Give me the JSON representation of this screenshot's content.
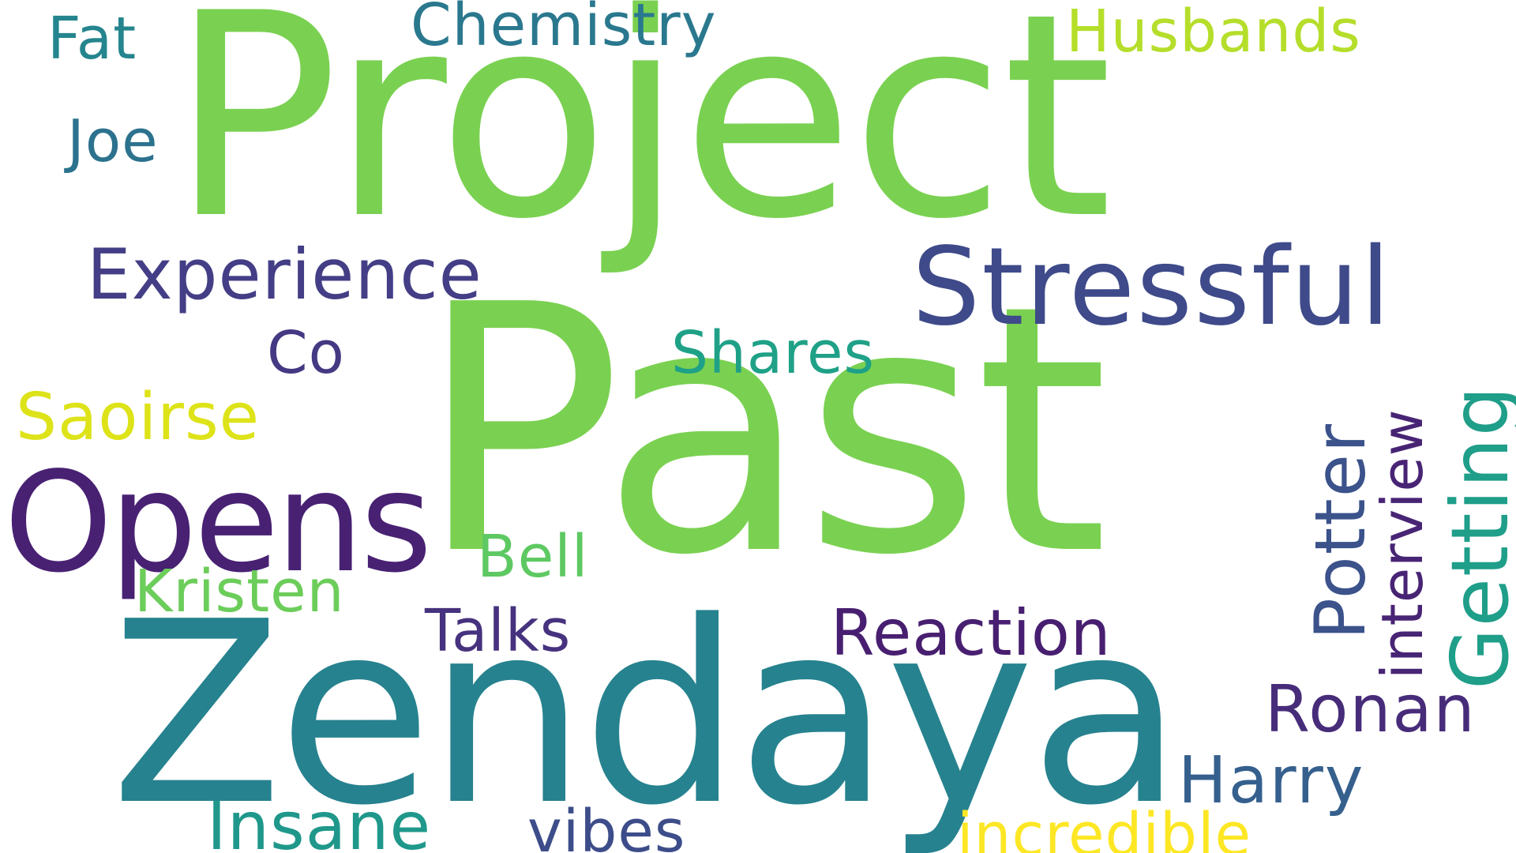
{
  "words": [
    {
      "text": "Past",
      "color": "#7ad151"
    },
    {
      "text": "Project",
      "color": "#7ad151"
    },
    {
      "text": "Zendaya",
      "color": "#26828e"
    },
    {
      "text": "Opens",
      "color": "#482173"
    },
    {
      "text": "Stressful",
      "color": "#3e4a89"
    },
    {
      "text": "Experience",
      "color": "#433e85"
    },
    {
      "text": "Getting",
      "color": "#1f9e89"
    },
    {
      "text": "Potter",
      "color": "#3b528b"
    },
    {
      "text": "interview",
      "color": "#482475"
    },
    {
      "text": "Reaction",
      "color": "#481f70"
    },
    {
      "text": "Ronan",
      "color": "#472c7a"
    },
    {
      "text": "Harry",
      "color": "#355f8d"
    },
    {
      "text": "Saoirse",
      "color": "#dde318"
    },
    {
      "text": "incredible",
      "color": "#fde725"
    },
    {
      "text": "Insane",
      "color": "#1f988b"
    },
    {
      "text": "vibes",
      "color": "#3d4d8a"
    },
    {
      "text": "Kristen",
      "color": "#6ccd5a"
    },
    {
      "text": "Talks",
      "color": "#46327e"
    },
    {
      "text": "Bell",
      "color": "#5ec962"
    },
    {
      "text": "Shares",
      "color": "#1fa187"
    },
    {
      "text": "Co",
      "color": "#443983"
    },
    {
      "text": "Husbands",
      "color": "#b5de2b"
    },
    {
      "text": "Chemistry",
      "color": "#2a788e"
    },
    {
      "text": "Fat",
      "color": "#25858e"
    },
    {
      "text": "Joe",
      "color": "#2c728e"
    }
  ]
}
